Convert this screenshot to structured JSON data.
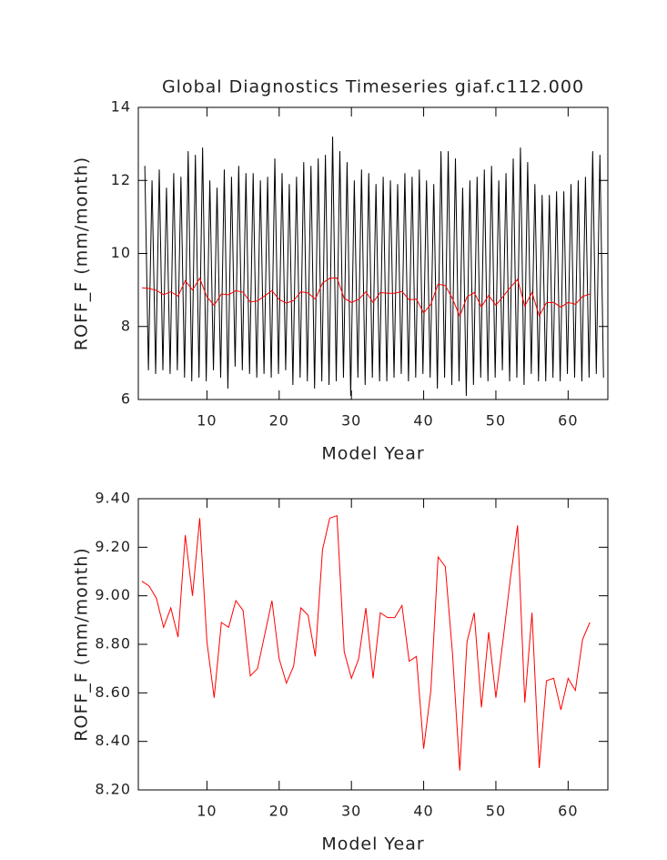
{
  "chart_data": [
    {
      "type": "line",
      "title": "Global Diagnostics Timeseries giaf.c112.000",
      "xlabel": "Model Year",
      "ylabel": "ROFF_F (mm/month)",
      "xlim": [
        0.5,
        65.5
      ],
      "xticks": [
        10,
        20,
        30,
        40,
        50,
        60
      ],
      "ylim": [
        6,
        14
      ],
      "yticks": [
        6,
        8,
        10,
        12,
        14
      ],
      "series": [
        {
          "color": "#000000",
          "x": [
            1.4,
            1.9,
            2.4,
            2.9,
            3.4,
            3.9,
            4.4,
            4.9,
            5.4,
            5.9,
            6.4,
            6.9,
            7.4,
            7.9,
            8.4,
            8.9,
            9.4,
            9.9,
            10.4,
            10.9,
            11.4,
            11.9,
            12.4,
            12.9,
            13.4,
            13.9,
            14.4,
            14.9,
            15.4,
            15.9,
            16.4,
            16.9,
            17.4,
            17.9,
            18.4,
            18.9,
            19.4,
            19.9,
            20.4,
            20.9,
            21.4,
            21.9,
            22.4,
            22.9,
            23.4,
            23.9,
            24.4,
            24.9,
            25.4,
            25.9,
            26.4,
            26.9,
            27.4,
            27.9,
            28.4,
            28.9,
            29.4,
            29.9,
            30.4,
            30.9,
            31.4,
            31.9,
            32.4,
            32.9,
            33.4,
            33.9,
            34.4,
            34.9,
            35.4,
            35.9,
            36.4,
            36.9,
            37.4,
            37.9,
            38.4,
            38.9,
            39.4,
            39.9,
            40.4,
            40.9,
            41.4,
            41.9,
            42.4,
            42.9,
            43.4,
            43.9,
            44.4,
            44.9,
            45.4,
            45.9,
            46.4,
            46.9,
            47.4,
            47.9,
            48.4,
            48.9,
            49.4,
            49.9,
            50.4,
            50.9,
            51.4,
            51.9,
            52.4,
            52.9,
            53.4,
            53.9,
            54.4,
            54.9,
            55.4,
            55.9,
            56.4,
            56.9,
            57.4,
            57.9,
            58.4,
            58.9,
            59.4,
            59.9,
            60.4,
            60.9,
            61.4,
            61.9,
            62.4,
            62.9,
            63.4,
            63.9,
            64.4,
            64.9
          ],
          "values": [
            12.4,
            6.8,
            12.0,
            6.7,
            12.3,
            6.8,
            11.8,
            6.7,
            12.2,
            6.8,
            12.1,
            6.6,
            12.8,
            6.5,
            12.7,
            6.6,
            12.9,
            6.5,
            12.0,
            6.8,
            11.8,
            6.6,
            12.3,
            6.3,
            12.1,
            6.9,
            12.4,
            6.8,
            12.2,
            6.7,
            12.2,
            6.6,
            12.0,
            6.7,
            12.1,
            6.6,
            12.6,
            6.7,
            12.2,
            6.8,
            11.9,
            6.4,
            12.1,
            6.6,
            12.5,
            6.5,
            12.4,
            6.3,
            12.6,
            6.5,
            12.7,
            6.4,
            13.2,
            6.5,
            12.8,
            6.6,
            12.5,
            6.1,
            12.0,
            6.6,
            12.3,
            6.4,
            12.2,
            6.6,
            11.9,
            6.5,
            12.1,
            6.5,
            12.0,
            6.6,
            11.9,
            6.7,
            12.2,
            6.5,
            12.1,
            6.6,
            12.3,
            6.7,
            12.0,
            6.6,
            11.9,
            6.3,
            12.8,
            6.6,
            12.8,
            6.4,
            12.6,
            6.5,
            11.8,
            6.1,
            12.0,
            6.4,
            12.1,
            6.6,
            12.3,
            6.5,
            12.4,
            6.6,
            12.0,
            6.8,
            12.2,
            6.5,
            12.6,
            6.6,
            12.9,
            6.4,
            12.5,
            6.7,
            11.9,
            6.5,
            11.6,
            6.5,
            11.6,
            6.6,
            11.7,
            6.5,
            11.7,
            6.7,
            11.9,
            6.6,
            12.0,
            6.5,
            12.1,
            6.6,
            12.8,
            6.7,
            12.7,
            6.6
          ]
        },
        {
          "color": "#ff0000",
          "x": [
            1,
            2,
            3,
            4,
            5,
            6,
            7,
            8,
            9,
            10,
            11,
            12,
            13,
            14,
            15,
            16,
            17,
            18,
            19,
            20,
            21,
            22,
            23,
            24,
            25,
            26,
            27,
            28,
            29,
            30,
            31,
            32,
            33,
            34,
            35,
            36,
            37,
            38,
            39,
            40,
            41,
            42,
            43,
            44,
            45,
            46,
            47,
            48,
            49,
            50,
            51,
            52,
            53,
            54,
            55,
            56,
            57,
            58,
            59,
            60,
            61,
            62,
            63
          ],
          "values": [
            9.06,
            9.04,
            8.99,
            8.87,
            8.95,
            8.83,
            9.25,
            9.0,
            9.32,
            8.81,
            8.58,
            8.89,
            8.87,
            8.98,
            8.94,
            8.67,
            8.7,
            8.84,
            8.98,
            8.74,
            8.64,
            8.71,
            8.95,
            8.92,
            8.75,
            9.19,
            9.32,
            9.33,
            8.77,
            8.66,
            8.74,
            8.95,
            8.66,
            8.93,
            8.91,
            8.91,
            8.96,
            8.73,
            8.75,
            8.37,
            8.61,
            9.16,
            9.12,
            8.76,
            8.28,
            8.81,
            8.93,
            8.54,
            8.85,
            8.58,
            8.82,
            9.07,
            9.29,
            8.56,
            8.93,
            8.29,
            8.65,
            8.66,
            8.53,
            8.66,
            8.61,
            8.82,
            8.89
          ]
        }
      ]
    },
    {
      "type": "line",
      "xlabel": "Model Year",
      "ylabel": "ROFF_F (mm/month)",
      "xlim": [
        0.5,
        65.5
      ],
      "xticks": [
        10,
        20,
        30,
        40,
        50,
        60
      ],
      "ylim": [
        8.2,
        9.4
      ],
      "yticks": [
        {
          "value": 8.2,
          "label": "8.20"
        },
        {
          "value": 8.4,
          "label": "8.40"
        },
        {
          "value": 8.6,
          "label": "8.60"
        },
        {
          "value": 8.8,
          "label": "8.80"
        },
        {
          "value": 9.0,
          "label": "9.00"
        },
        {
          "value": 9.2,
          "label": "9.20"
        },
        {
          "value": 9.4,
          "label": "9.40"
        }
      ],
      "series": [
        {
          "color": "#ff0000",
          "x": [
            1,
            2,
            3,
            4,
            5,
            6,
            7,
            8,
            9,
            10,
            11,
            12,
            13,
            14,
            15,
            16,
            17,
            18,
            19,
            20,
            21,
            22,
            23,
            24,
            25,
            26,
            27,
            28,
            29,
            30,
            31,
            32,
            33,
            34,
            35,
            36,
            37,
            38,
            39,
            40,
            41,
            42,
            43,
            44,
            45,
            46,
            47,
            48,
            49,
            50,
            51,
            52,
            53,
            54,
            55,
            56,
            57,
            58,
            59,
            60,
            61,
            62,
            63
          ],
          "values": [
            9.06,
            9.04,
            8.99,
            8.87,
            8.95,
            8.83,
            9.25,
            9.0,
            9.32,
            8.81,
            8.58,
            8.89,
            8.87,
            8.98,
            8.94,
            8.67,
            8.7,
            8.84,
            8.98,
            8.74,
            8.64,
            8.71,
            8.95,
            8.92,
            8.75,
            9.19,
            9.32,
            9.33,
            8.77,
            8.66,
            8.74,
            8.95,
            8.66,
            8.93,
            8.91,
            8.91,
            8.96,
            8.73,
            8.75,
            8.37,
            8.61,
            9.16,
            9.12,
            8.76,
            8.28,
            8.81,
            8.93,
            8.54,
            8.85,
            8.58,
            8.82,
            9.07,
            9.29,
            8.56,
            8.93,
            8.29,
            8.65,
            8.66,
            8.53,
            8.66,
            8.61,
            8.82,
            8.89
          ]
        }
      ]
    }
  ]
}
